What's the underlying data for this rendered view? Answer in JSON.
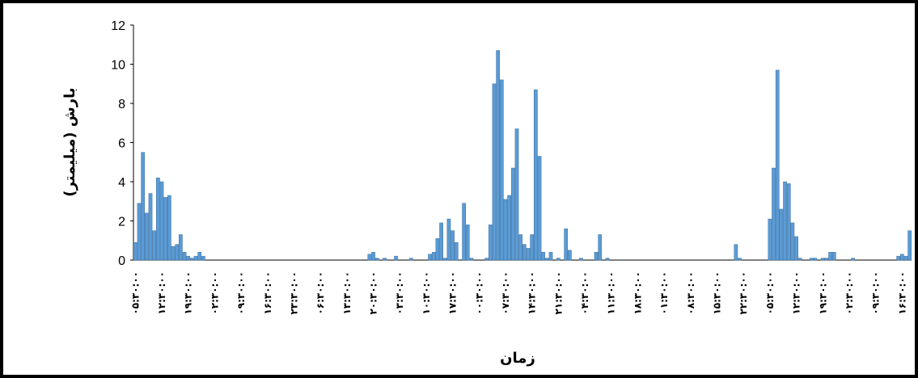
{
  "chart_data": {
    "type": "bar",
    "x_label": "زمان",
    "y_label": "بارش (میلیمتر)",
    "color": "#5b9bd5",
    "ylim": [
      0,
      12
    ],
    "yticks": [
      0,
      2,
      4,
      6,
      8,
      10,
      12
    ],
    "categories": [
      "۰۵:۳۰:۰۰",
      null,
      null,
      null,
      null,
      null,
      null,
      "۱۲:۳۰:۰۰",
      null,
      null,
      null,
      null,
      null,
      null,
      "۱۹:۳۰:۰۰",
      null,
      null,
      null,
      null,
      null,
      null,
      "۰۲:۳۰:۰۰",
      null,
      null,
      null,
      null,
      null,
      null,
      "۰۹:۳۰:۰۰",
      null,
      null,
      null,
      null,
      null,
      null,
      "۱۶:۳۰:۰۰",
      null,
      null,
      null,
      null,
      null,
      null,
      "۲۳:۳۰:۰۰",
      null,
      null,
      null,
      null,
      null,
      null,
      "۰۶:۳۰:۰۰",
      null,
      null,
      null,
      null,
      null,
      null,
      "۱۳:۳۰:۰۰",
      null,
      null,
      null,
      null,
      null,
      null,
      "۲۰:۳۰:۰۰",
      null,
      null,
      null,
      null,
      null,
      null,
      "۰۳:۳۰:۰۰",
      null,
      null,
      null,
      null,
      null,
      null,
      "۱۰:۳۰:۰۰",
      null,
      null,
      null,
      null,
      null,
      null,
      "۱۷:۳۰:۰۰",
      null,
      null,
      null,
      null,
      null,
      null,
      "۰۰:۳۰:۰۰",
      null,
      null,
      null,
      null,
      null,
      null,
      "۰۷:۳۰:۰۰",
      null,
      null,
      null,
      null,
      null,
      null,
      "۱۴:۳۰:۰۰",
      null,
      null,
      null,
      null,
      null,
      null,
      "۲۱:۳۰:۰۰",
      null,
      null,
      null,
      null,
      null,
      null,
      "۰۴:۳۰:۰۰",
      null,
      null,
      null,
      null,
      null,
      null,
      "۱۱:۳۰:۰۰",
      null,
      null,
      null,
      null,
      null,
      null,
      "۱۸:۳۰:۰۰",
      null,
      null,
      null,
      null,
      null,
      null,
      "۰۱:۳۰:۰۰",
      null,
      null,
      null,
      null,
      null,
      null,
      "۰۸:۳۰:۰۰",
      null,
      null,
      null,
      null,
      null,
      null,
      "۱۵:۳۰:۰۰",
      null,
      null,
      null,
      null,
      null,
      null,
      "۲۲:۳۰:۰۰",
      null,
      null,
      null,
      null,
      null,
      null,
      "۰۵:۳۰:۰۰",
      null,
      null,
      null,
      null,
      null,
      null,
      "۱۲:۳۰:۰۰",
      null,
      null,
      null,
      null,
      null,
      null,
      "۱۹:۳۰:۰۰",
      null,
      null,
      null,
      null,
      null,
      null,
      "۰۲:۳۰:۰۰",
      null,
      null,
      null,
      null,
      null,
      null,
      "۰۹:۳۰:۰۰",
      null,
      null,
      null,
      null,
      null,
      null,
      "۱۶:۳۰:۰۰",
      null,
      null
    ],
    "values": [
      0.9,
      2.9,
      5.5,
      2.4,
      3.4,
      1.5,
      4.2,
      4.0,
      3.2,
      3.3,
      0.7,
      0.8,
      1.3,
      0.4,
      0.2,
      0.1,
      0.2,
      0.4,
      0.2,
      0,
      0,
      0,
      0,
      0,
      0,
      0,
      0,
      0,
      0,
      0,
      0,
      0,
      0,
      0,
      0,
      0,
      0,
      0,
      0,
      0,
      0,
      0,
      0,
      0,
      0,
      0,
      0,
      0,
      0,
      0,
      0,
      0,
      0,
      0,
      0,
      0,
      0,
      0,
      0,
      0,
      0,
      0,
      0.3,
      0.4,
      0.1,
      0,
      0.1,
      0,
      0,
      0.2,
      0,
      0,
      0,
      0.1,
      0,
      0,
      0,
      0,
      0.3,
      0.4,
      1.1,
      1.9,
      0.1,
      2.1,
      1.5,
      0.9,
      0,
      2.9,
      1.8,
      0.1,
      0,
      0,
      0,
      0.1,
      1.8,
      9.0,
      10.7,
      9.2,
      3.1,
      3.3,
      4.7,
      6.7,
      1.3,
      0.8,
      0.6,
      1.3,
      8.7,
      5.3,
      0.4,
      0.1,
      0.4,
      0,
      0.1,
      0,
      1.6,
      0.5,
      0,
      0,
      0.1,
      0,
      0,
      0,
      0.4,
      1.3,
      0,
      0.1,
      0,
      0,
      0,
      0,
      0,
      0,
      0,
      0,
      0,
      0,
      0,
      0,
      0,
      0,
      0,
      0,
      0,
      0,
      0,
      0,
      0,
      0,
      0,
      0,
      0,
      0,
      0,
      0,
      0,
      0,
      0,
      0,
      0,
      0.8,
      0.1,
      0,
      0,
      0,
      0,
      0,
      0,
      0,
      2.1,
      4.7,
      9.7,
      2.6,
      4.0,
      3.9,
      1.9,
      1.2,
      0.1,
      0,
      0,
      0.1,
      0.1,
      0,
      0.1,
      0.1,
      0.4,
      0.4,
      0,
      0,
      0,
      0,
      0.1,
      0,
      0,
      0,
      0,
      0,
      0,
      0,
      0,
      0,
      0,
      0,
      0.2,
      0.3,
      0.2,
      1.5
    ]
  }
}
